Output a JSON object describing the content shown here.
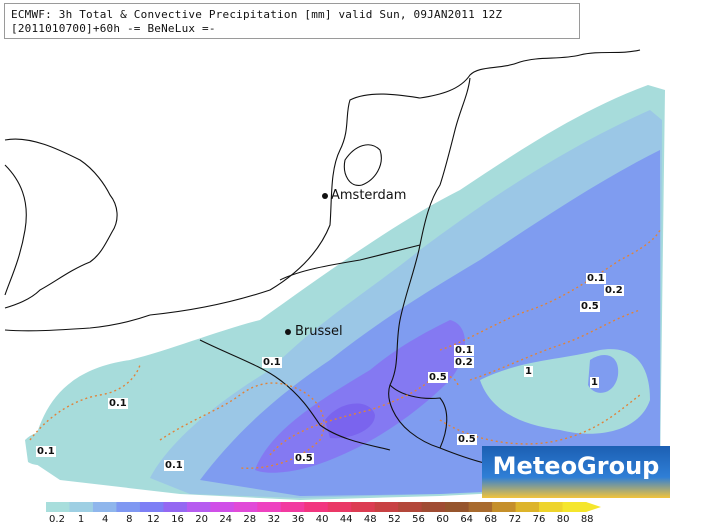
{
  "header": {
    "line1": "ECMWF: 3h Total & Convective Precipitation [mm] valid Sun, 09JAN2011 12Z",
    "line2": "[2011010700]+60h -= BeNeLux =-"
  },
  "cities": [
    {
      "name": "Amsterdam"
    },
    {
      "name": "Brussel"
    }
  ],
  "contour_labels": [
    "0.1",
    "0.1",
    "0.1",
    "0.1",
    "0.5",
    "0.1",
    "0.2",
    "0.5",
    "1",
    "0.5",
    "0.1",
    "0.2",
    "0.5",
    "1"
  ],
  "logo": {
    "text": "MeteoGroup"
  },
  "legend": {
    "ticks": [
      "0.2",
      "1",
      "4",
      "8",
      "12",
      "16",
      "20",
      "24",
      "28",
      "32",
      "36",
      "40",
      "44",
      "48",
      "52",
      "56",
      "60",
      "64",
      "68",
      "72",
      "76",
      "80",
      "88"
    ],
    "colors": [
      "#a8dedc",
      "#9ecfe3",
      "#8fb6ec",
      "#7f98f2",
      "#7d7ff5",
      "#9468f2",
      "#b65cf0",
      "#d04fe8",
      "#e14ad8",
      "#ee42c0",
      "#f23aa0",
      "#f2357f",
      "#ea3866",
      "#dc3c52",
      "#c84143",
      "#b3473a",
      "#a04c33",
      "#96552d",
      "#a86a2d",
      "#c58f2a",
      "#ddb42a",
      "#eed42b",
      "#f5e62c"
    ]
  },
  "colors": {
    "light_cyan": "#a7dcdb",
    "pale_blue": "#9bc7e6",
    "mid_blue": "#7f9cf0",
    "violet": "#8479f2",
    "dark_violet": "#7a64ee",
    "dotted_contour": "#e0833a"
  }
}
